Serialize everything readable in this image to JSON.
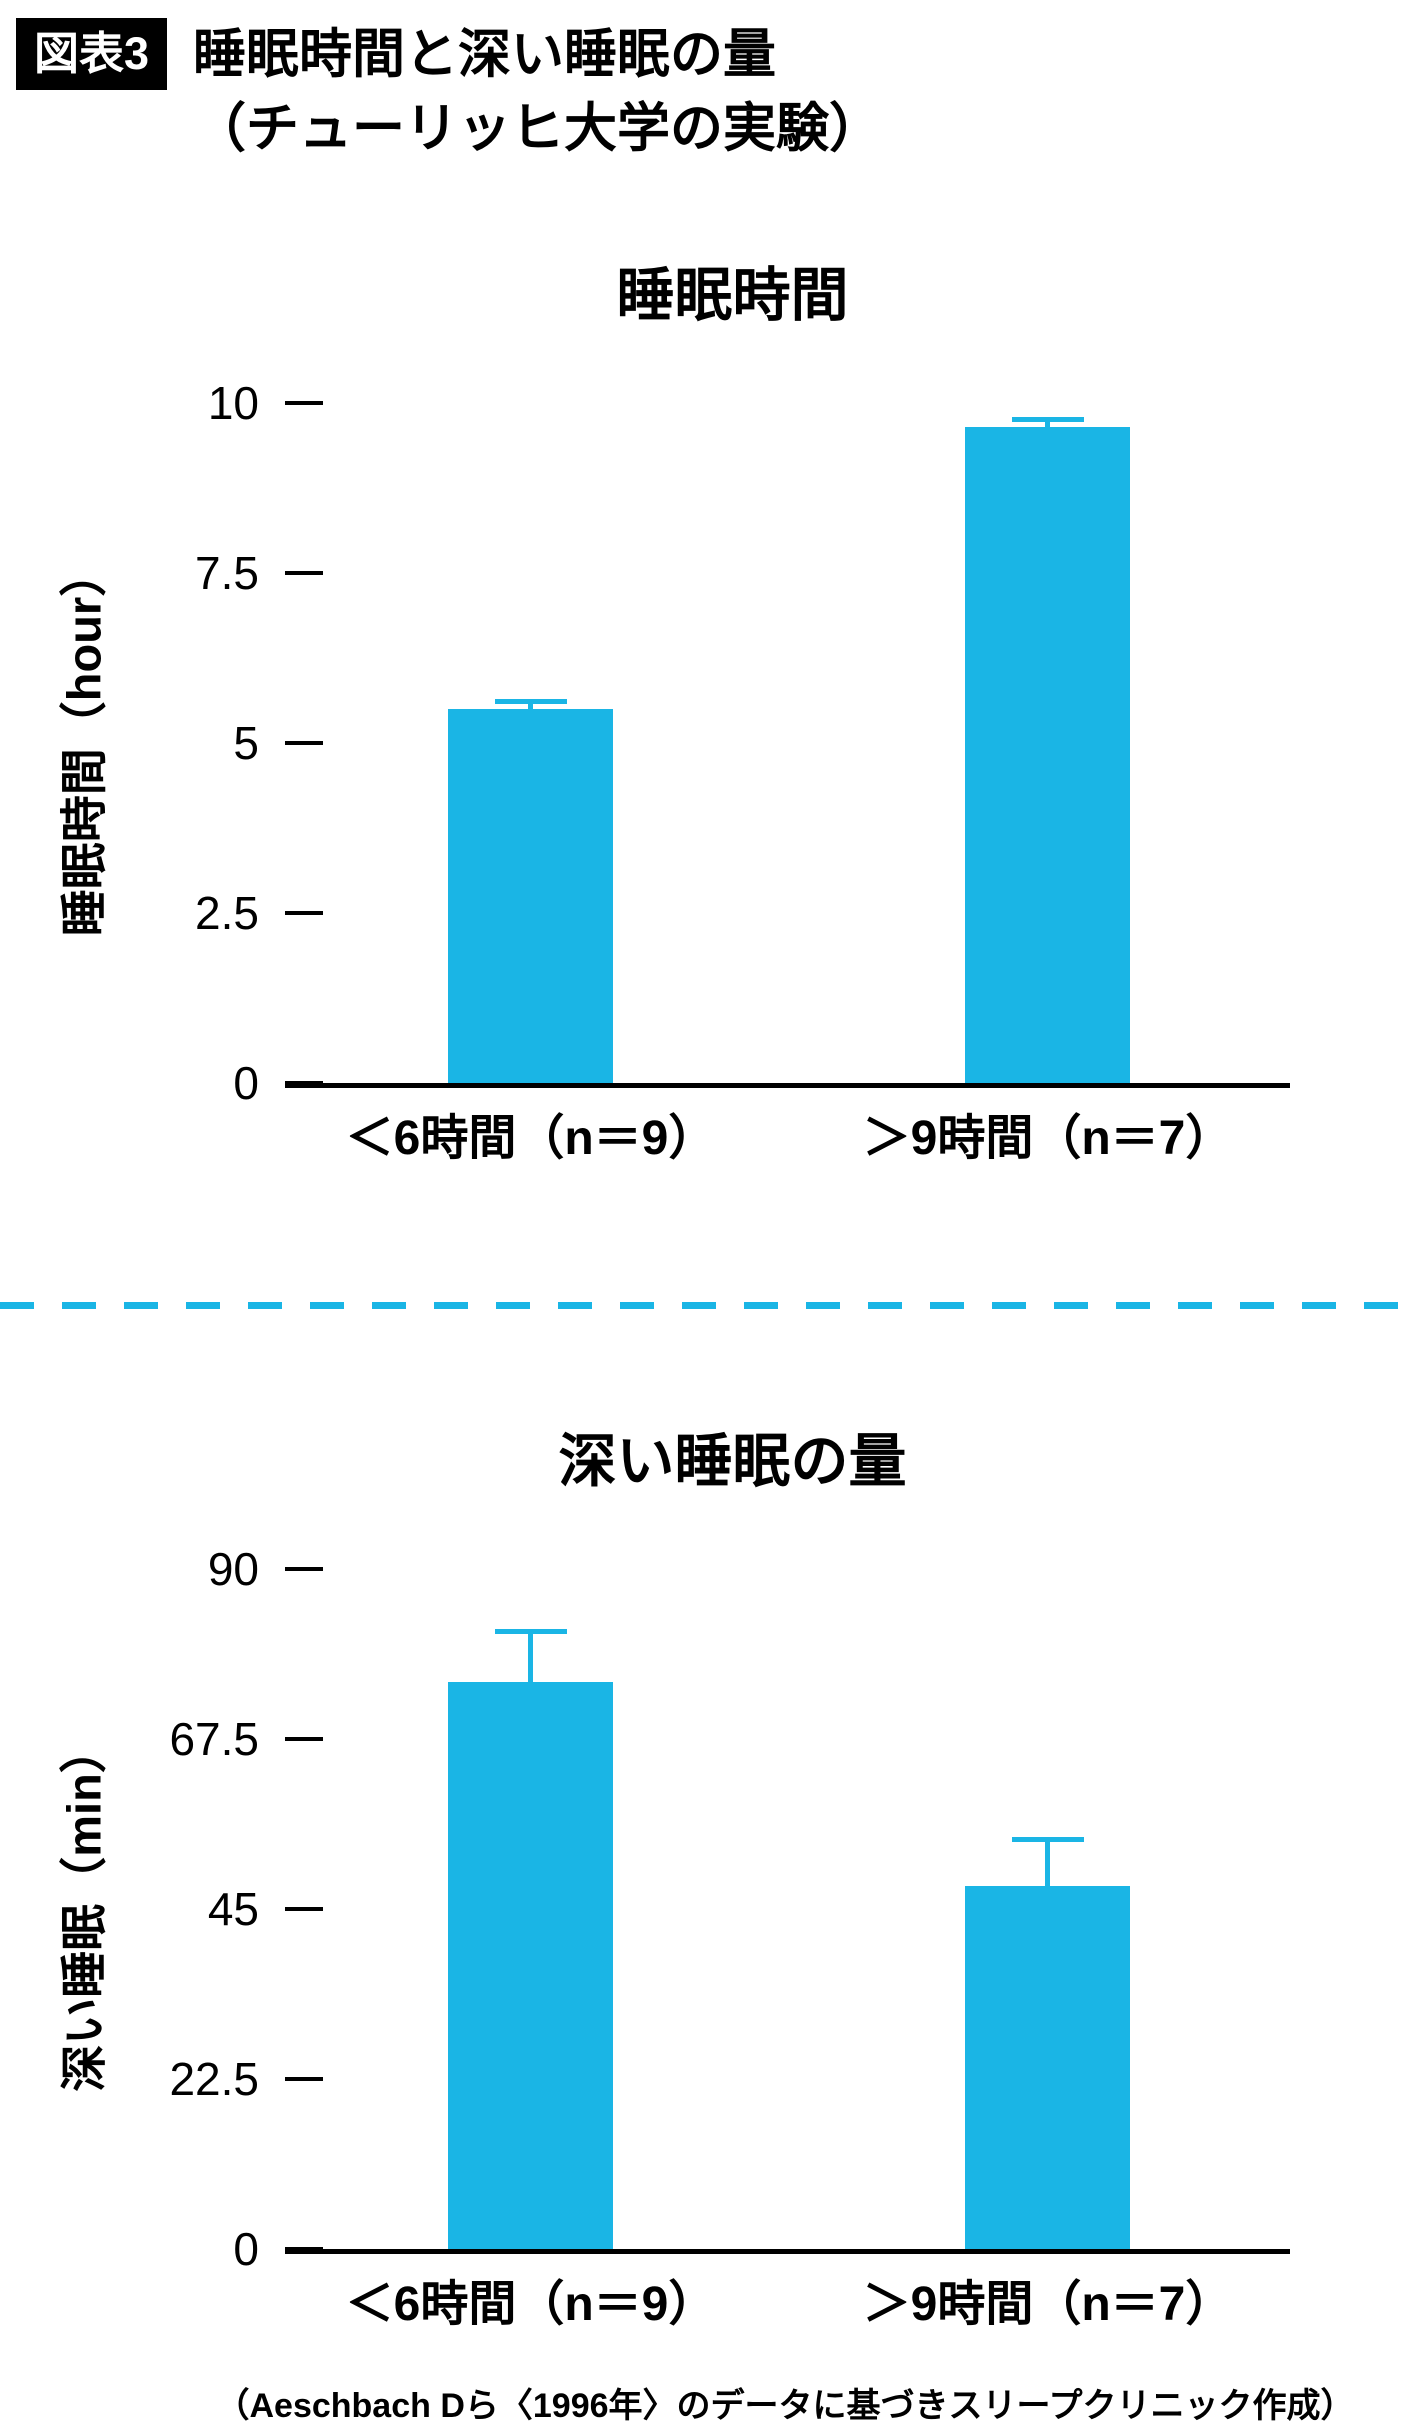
{
  "header": {
    "badge": "図表3",
    "title_line1": "睡眠時間と深い睡眠の量",
    "title_line2": "（チューリッヒ大学の実験）"
  },
  "colors": {
    "bar": "#1ab5e5",
    "error_bar": "#1ab5e5",
    "divider": "#1ab5e5",
    "axis": "#000000",
    "badge_bg": "#000000",
    "badge_text": "#ffffff"
  },
  "chart_data": [
    {
      "type": "bar",
      "title": "睡眠時間",
      "ylabel": "睡眠時間（hour）",
      "ylim": [
        0,
        10
      ],
      "yticks": [
        0,
        2.5,
        5,
        7.5,
        10
      ],
      "ytick_labels": [
        "0",
        "2.5",
        "5",
        "7.5",
        "10"
      ],
      "categories": [
        "＜6時間（n＝9）",
        "＞9時間（n＝7）"
      ],
      "values": [
        5.5,
        9.65
      ],
      "error_upper": [
        5.65,
        9.8
      ],
      "grid": false,
      "legend": false
    },
    {
      "type": "bar",
      "title": "深い睡眠の量",
      "ylabel": "深い睡眠（min）",
      "ylim": [
        0,
        90
      ],
      "yticks": [
        0,
        22.5,
        45,
        67.5,
        90
      ],
      "ytick_labels": [
        "0",
        "22.5",
        "45",
        "67.5",
        "90"
      ],
      "categories": [
        "＜6時間（n＝9）",
        "＞9時間（n＝7）"
      ],
      "values": [
        75,
        48
      ],
      "error_upper": [
        82,
        54.5
      ],
      "grid": false,
      "legend": false
    }
  ],
  "footer": {
    "credit": "（Aeschbach Dら〈1996年〉のデータに基づきスリープクリニック作成）"
  }
}
